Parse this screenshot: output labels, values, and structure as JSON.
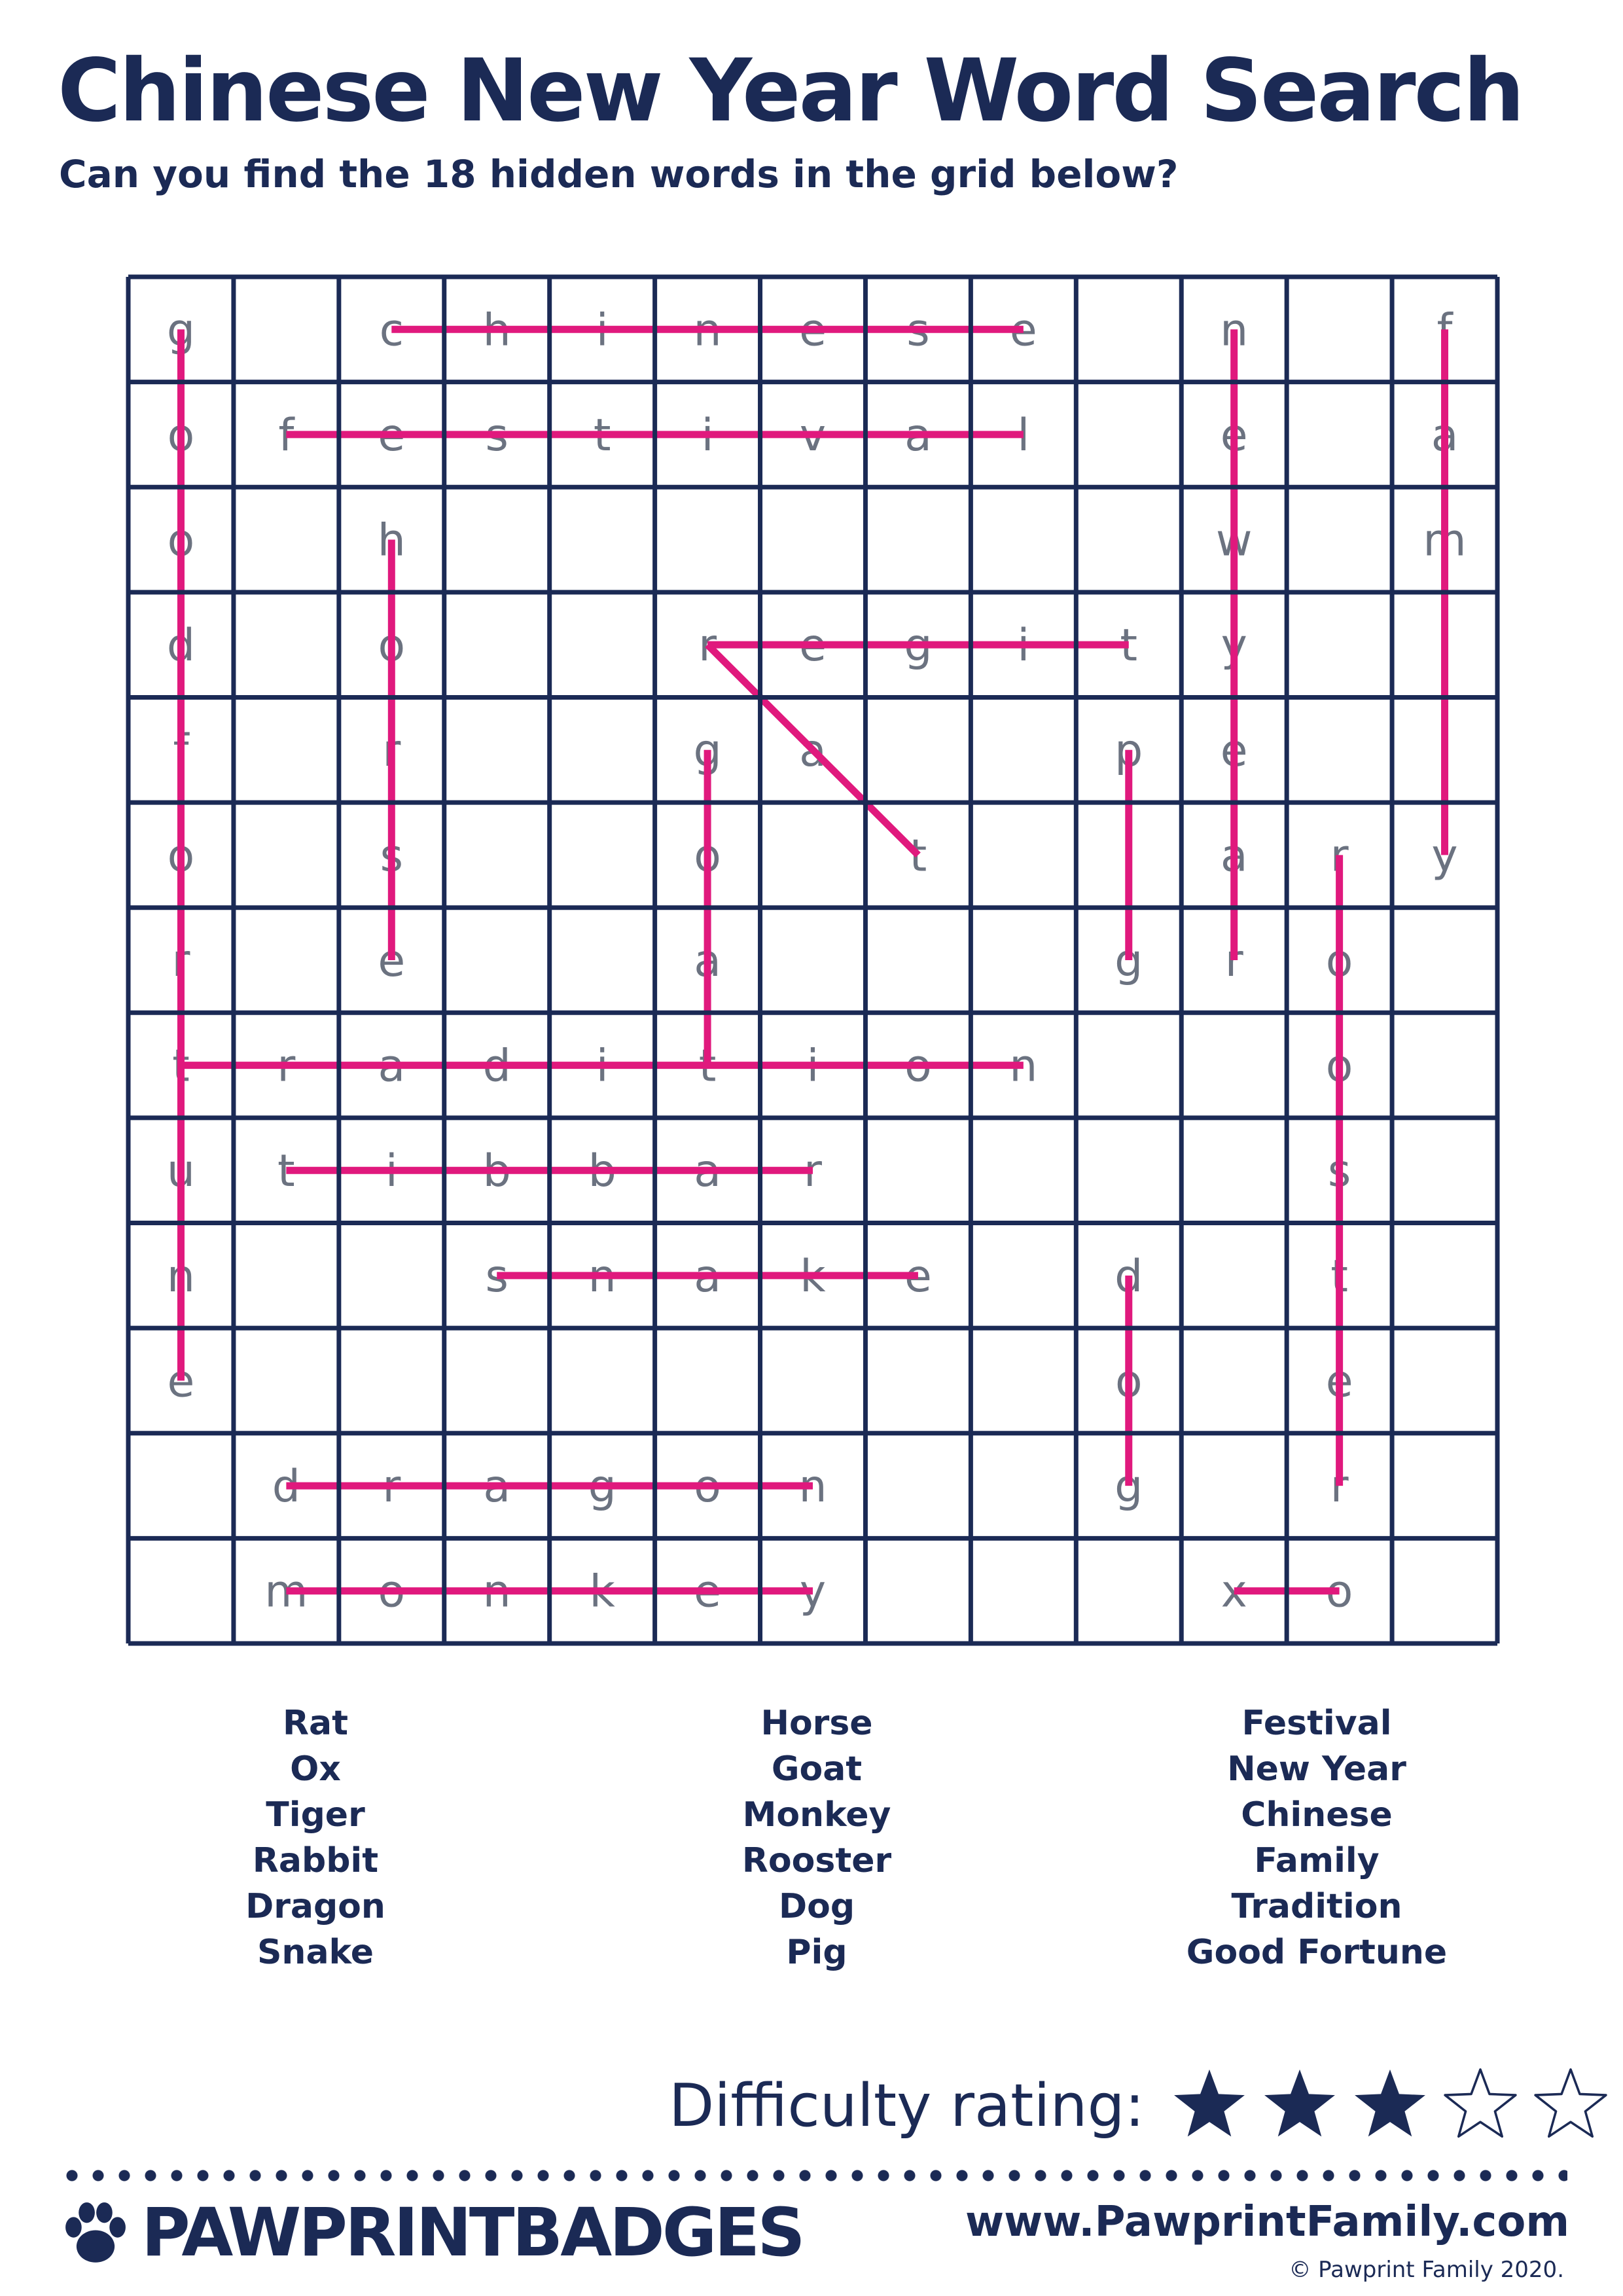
{
  "title": "Chinese New Year Word Search",
  "subtitle": "Can you find the 18 hidden words in the grid below?",
  "colors": {
    "navy": "#1b2a55",
    "highlight": "#e0197d",
    "letter": "#6b7280"
  },
  "grid": {
    "rows": 13,
    "cols": 13,
    "letters": [
      [
        "g",
        "",
        "c",
        "h",
        "i",
        "n",
        "e",
        "s",
        "e",
        "",
        "n",
        "",
        "f"
      ],
      [
        "o",
        "f",
        "e",
        "s",
        "t",
        "i",
        "v",
        "a",
        "l",
        "",
        "e",
        "",
        "a"
      ],
      [
        "o",
        "",
        "h",
        "",
        "",
        "",
        "",
        "",
        "",
        "",
        "w",
        "",
        "m"
      ],
      [
        "d",
        "",
        "o",
        "",
        "",
        "r",
        "e",
        "g",
        "i",
        "t",
        "y",
        "",
        "i"
      ],
      [
        "f",
        "",
        "r",
        "",
        "",
        "g",
        "a",
        "",
        "",
        "p",
        "e",
        "",
        "l"
      ],
      [
        "o",
        "",
        "s",
        "",
        "",
        "o",
        "",
        "t",
        "",
        "i",
        "a",
        "r",
        "y"
      ],
      [
        "r",
        "",
        "e",
        "",
        "",
        "a",
        "",
        "",
        "",
        "g",
        "r",
        "o",
        ""
      ],
      [
        "t",
        "r",
        "a",
        "d",
        "i",
        "t",
        "i",
        "o",
        "n",
        "",
        "",
        "o",
        ""
      ],
      [
        "u",
        "t",
        "i",
        "b",
        "b",
        "a",
        "r",
        "",
        "",
        "",
        "",
        "s",
        ""
      ],
      [
        "n",
        "",
        "",
        "s",
        "n",
        "a",
        "k",
        "e",
        "",
        "d",
        "",
        "t",
        ""
      ],
      [
        "e",
        "",
        "",
        "",
        "",
        "",
        "",
        "",
        "",
        "o",
        "",
        "e",
        ""
      ],
      [
        "",
        "d",
        "r",
        "a",
        "g",
        "o",
        "n",
        "",
        "",
        "g",
        "",
        "r",
        ""
      ],
      [
        "",
        "m",
        "o",
        "n",
        "k",
        "e",
        "y",
        "",
        "",
        "",
        "x",
        "o",
        ""
      ]
    ],
    "found_lines": [
      {
        "word": "chinese",
        "from": [
          0,
          2
        ],
        "to": [
          0,
          8
        ]
      },
      {
        "word": "festival",
        "from": [
          1,
          1
        ],
        "to": [
          1,
          8
        ]
      },
      {
        "word": "good fortune",
        "from": [
          0,
          0
        ],
        "to": [
          10,
          0
        ]
      },
      {
        "word": "horse",
        "from": [
          2,
          2
        ],
        "to": [
          6,
          2
        ]
      },
      {
        "word": "tiger",
        "from": [
          3,
          9
        ],
        "to": [
          3,
          5
        ]
      },
      {
        "word": "rat",
        "from": [
          3,
          5
        ],
        "to": [
          5,
          7
        ]
      },
      {
        "word": "goat",
        "from": [
          4,
          5
        ],
        "to": [
          7,
          5
        ]
      },
      {
        "word": "pig",
        "from": [
          4,
          9
        ],
        "to": [
          6,
          9
        ]
      },
      {
        "word": "new year",
        "from": [
          0,
          10
        ],
        "to": [
          6,
          10
        ]
      },
      {
        "word": "family",
        "from": [
          0,
          12
        ],
        "to": [
          5,
          12
        ]
      },
      {
        "word": "rooster",
        "from": [
          5,
          11
        ],
        "to": [
          11,
          11
        ]
      },
      {
        "word": "tradition",
        "from": [
          7,
          0
        ],
        "to": [
          7,
          8
        ]
      },
      {
        "word": "rabbit",
        "from": [
          8,
          6
        ],
        "to": [
          8,
          1
        ]
      },
      {
        "word": "snake",
        "from": [
          9,
          3
        ],
        "to": [
          9,
          7
        ]
      },
      {
        "word": "dog",
        "from": [
          9,
          9
        ],
        "to": [
          11,
          9
        ]
      },
      {
        "word": "dragon",
        "from": [
          11,
          1
        ],
        "to": [
          11,
          6
        ]
      },
      {
        "word": "monkey",
        "from": [
          12,
          1
        ],
        "to": [
          12,
          6
        ]
      },
      {
        "word": "ox",
        "from": [
          12,
          11
        ],
        "to": [
          12,
          10
        ]
      }
    ]
  },
  "word_list": {
    "column_1": [
      "Rat",
      "Ox",
      "Tiger",
      "Rabbit",
      "Dragon",
      "Snake"
    ],
    "column_2": [
      "Horse",
      "Goat",
      "Monkey",
      "Rooster",
      "Dog",
      "Pig"
    ],
    "column_3": [
      "Festival",
      "New Year",
      "Chinese",
      "Family",
      "Tradition",
      "Good Fortune"
    ]
  },
  "difficulty": {
    "label": "Difficulty rating:",
    "rating": 3,
    "max": 5
  },
  "footer": {
    "brand": "PAWPRINTBADGES",
    "url": "www.PawprintFamily.com",
    "copyright": "© Pawprint Family 2020."
  }
}
